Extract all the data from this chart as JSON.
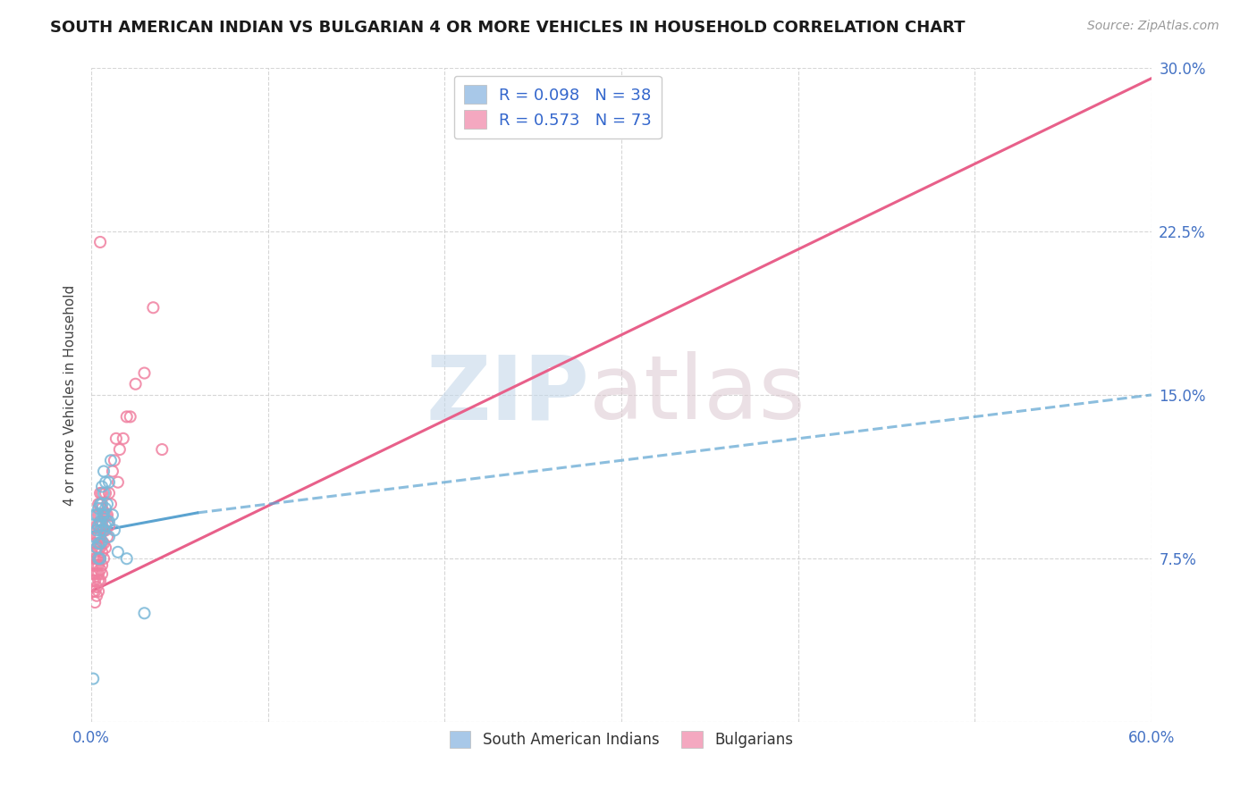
{
  "title": "SOUTH AMERICAN INDIAN VS BULGARIAN 4 OR MORE VEHICLES IN HOUSEHOLD CORRELATION CHART",
  "source": "Source: ZipAtlas.com",
  "ylabel": "4 or more Vehicles in Household",
  "xlim": [
    0.0,
    0.6
  ],
  "ylim": [
    0.0,
    0.3
  ],
  "xticks": [
    0.0,
    0.1,
    0.2,
    0.3,
    0.4,
    0.5,
    0.6
  ],
  "xticklabels": [
    "0.0%",
    "",
    "",
    "",
    "",
    "",
    "60.0%"
  ],
  "yticks": [
    0.0,
    0.075,
    0.15,
    0.225,
    0.3
  ],
  "yticklabels": [
    "",
    "7.5%",
    "15.0%",
    "22.5%",
    "30.0%"
  ],
  "legend_label_sa": "R = 0.098   N = 38",
  "legend_label_bg": "R = 0.573   N = 73",
  "legend_color_sa": "#a8c8e8",
  "legend_color_bg": "#f4a8c0",
  "south_american_color": "#7ab8d8",
  "bulgarian_color": "#f080a0",
  "trendline_sa_color": "#5ba3d0",
  "trendline_bg_color": "#e8608a",
  "watermark_zip_color": "#c5d8ea",
  "watermark_atlas_color": "#dcc8d0",
  "sa_scatter_x": [
    0.001,
    0.002,
    0.002,
    0.003,
    0.003,
    0.003,
    0.004,
    0.004,
    0.004,
    0.004,
    0.005,
    0.005,
    0.005,
    0.005,
    0.005,
    0.006,
    0.006,
    0.006,
    0.006,
    0.006,
    0.007,
    0.007,
    0.007,
    0.007,
    0.008,
    0.008,
    0.008,
    0.009,
    0.009,
    0.01,
    0.01,
    0.01,
    0.011,
    0.012,
    0.013,
    0.015,
    0.02,
    0.03
  ],
  "sa_scatter_y": [
    0.02,
    0.085,
    0.095,
    0.08,
    0.088,
    0.095,
    0.075,
    0.082,
    0.09,
    0.098,
    0.075,
    0.082,
    0.088,
    0.092,
    0.1,
    0.083,
    0.09,
    0.095,
    0.1,
    0.108,
    0.088,
    0.095,
    0.105,
    0.115,
    0.09,
    0.098,
    0.11,
    0.092,
    0.1,
    0.085,
    0.092,
    0.11,
    0.12,
    0.095,
    0.088,
    0.078,
    0.075,
    0.05
  ],
  "bg_scatter_x": [
    0.001,
    0.001,
    0.001,
    0.001,
    0.002,
    0.002,
    0.002,
    0.002,
    0.002,
    0.002,
    0.002,
    0.002,
    0.003,
    0.003,
    0.003,
    0.003,
    0.003,
    0.003,
    0.003,
    0.003,
    0.004,
    0.004,
    0.004,
    0.004,
    0.004,
    0.004,
    0.004,
    0.004,
    0.004,
    0.004,
    0.005,
    0.005,
    0.005,
    0.005,
    0.005,
    0.005,
    0.005,
    0.005,
    0.005,
    0.005,
    0.006,
    0.006,
    0.006,
    0.006,
    0.006,
    0.006,
    0.006,
    0.006,
    0.007,
    0.007,
    0.007,
    0.007,
    0.008,
    0.008,
    0.008,
    0.008,
    0.009,
    0.009,
    0.01,
    0.01,
    0.011,
    0.012,
    0.013,
    0.014,
    0.015,
    0.016,
    0.018,
    0.02,
    0.022,
    0.025,
    0.03,
    0.035,
    0.04
  ],
  "bg_scatter_y": [
    0.06,
    0.065,
    0.068,
    0.072,
    0.055,
    0.06,
    0.065,
    0.068,
    0.072,
    0.075,
    0.078,
    0.082,
    0.058,
    0.062,
    0.068,
    0.072,
    0.075,
    0.08,
    0.085,
    0.09,
    0.06,
    0.065,
    0.068,
    0.072,
    0.075,
    0.08,
    0.085,
    0.09,
    0.095,
    0.1,
    0.065,
    0.07,
    0.075,
    0.08,
    0.085,
    0.09,
    0.095,
    0.1,
    0.105,
    0.22,
    0.068,
    0.072,
    0.078,
    0.082,
    0.088,
    0.092,
    0.098,
    0.105,
    0.075,
    0.082,
    0.088,
    0.095,
    0.08,
    0.088,
    0.095,
    0.105,
    0.085,
    0.095,
    0.09,
    0.105,
    0.1,
    0.115,
    0.12,
    0.13,
    0.11,
    0.125,
    0.13,
    0.14,
    0.14,
    0.155,
    0.16,
    0.19,
    0.125
  ],
  "trendline_sa_x0": 0.0,
  "trendline_sa_y0": 0.087,
  "trendline_sa_x1": 0.06,
  "trendline_sa_y1": 0.096,
  "trendline_sa_xdash1": 0.06,
  "trendline_sa_ydash1": 0.096,
  "trendline_sa_xdash2": 0.6,
  "trendline_sa_ydash2": 0.15,
  "trendline_bg_x0": 0.0,
  "trendline_bg_y0": 0.06,
  "trendline_bg_x1": 0.6,
  "trendline_bg_y1": 0.295
}
